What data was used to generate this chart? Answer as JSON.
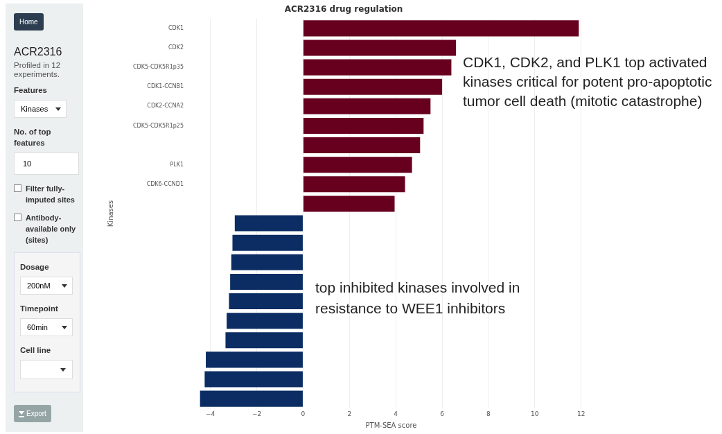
{
  "chart_data": {
    "type": "bar",
    "orientation": "horizontal",
    "title": "ACR2316 drug regulation",
    "xlabel": "PTM-SEA score",
    "ylabel": "Kinases",
    "categories": [
      "CDK1",
      "CDK2",
      "CDK5-CDK5R1p35",
      "CDK1-CCNB1",
      "CDK2-CCNA2",
      "CDK5-CDK5R1p25",
      null,
      "PLK1",
      "CDK6-CCND1",
      null,
      null,
      null,
      null,
      null,
      null,
      null,
      null,
      null,
      null,
      null
    ],
    "values": [
      11.9,
      6.6,
      6.4,
      6.0,
      5.5,
      5.2,
      5.05,
      4.7,
      4.4,
      3.95,
      -2.95,
      -3.05,
      -3.1,
      -3.15,
      -3.2,
      -3.3,
      -3.35,
      -4.2,
      -4.25,
      -4.45
    ],
    "colors": [
      "#67001f",
      "#67001f",
      "#67001f",
      "#67001f",
      "#67001f",
      "#67001f",
      "#67001f",
      "#67001f",
      "#67001f",
      "#67001f",
      "#0b2d63",
      "#0b2d63",
      "#0b2d63",
      "#0b2d63",
      "#0b2d63",
      "#0b2d63",
      "#0b2d63",
      "#0b2d63",
      "#0b2d63",
      "#0b2d63"
    ],
    "xlim": [
      -4.5,
      12.1
    ],
    "xticks": [
      -4,
      -2,
      0,
      2,
      4,
      6,
      8,
      10,
      12
    ],
    "grid": "x",
    "annotations": [
      "CDK1, CDK2, and PLK1 top activated kinases critical for potent pro-apoptotic tumor cell death (mitotic catastrophe)",
      "top inhibited kinases involved in resistance to WEE1 inhibitors",
      "Home",
      "ACR2316",
      "Profiled in 12 experiments.",
      "Features",
      "Kinases",
      "No. of top features",
      "10",
      "Filter fully-imputed sites",
      "Antibody-available only (sites)",
      "Dosage",
      "200nM",
      "Timepoint",
      "60min",
      "Cell line",
      "Export"
    ]
  }
}
